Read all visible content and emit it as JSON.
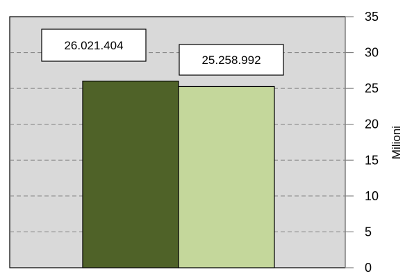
{
  "chart_data": {
    "type": "bar",
    "categories": [
      "",
      ""
    ],
    "values": [
      26.021404,
      25.258992
    ],
    "data_labels": [
      "26.021.404",
      "25.258.992"
    ],
    "bar_colors": [
      "#4f6228",
      "#c4d79b"
    ],
    "ylabel": "Milioni",
    "ylim": [
      0,
      35
    ],
    "y_ticks": [
      0,
      5,
      10,
      15,
      20,
      25,
      30,
      35
    ],
    "y_tick_labels": [
      "0",
      "5",
      "10",
      "15",
      "20",
      "25",
      "30",
      "35"
    ],
    "y_axis_position": "right",
    "grid": true,
    "grid_style": "dashed",
    "plot_background": "#d9d9d9"
  }
}
